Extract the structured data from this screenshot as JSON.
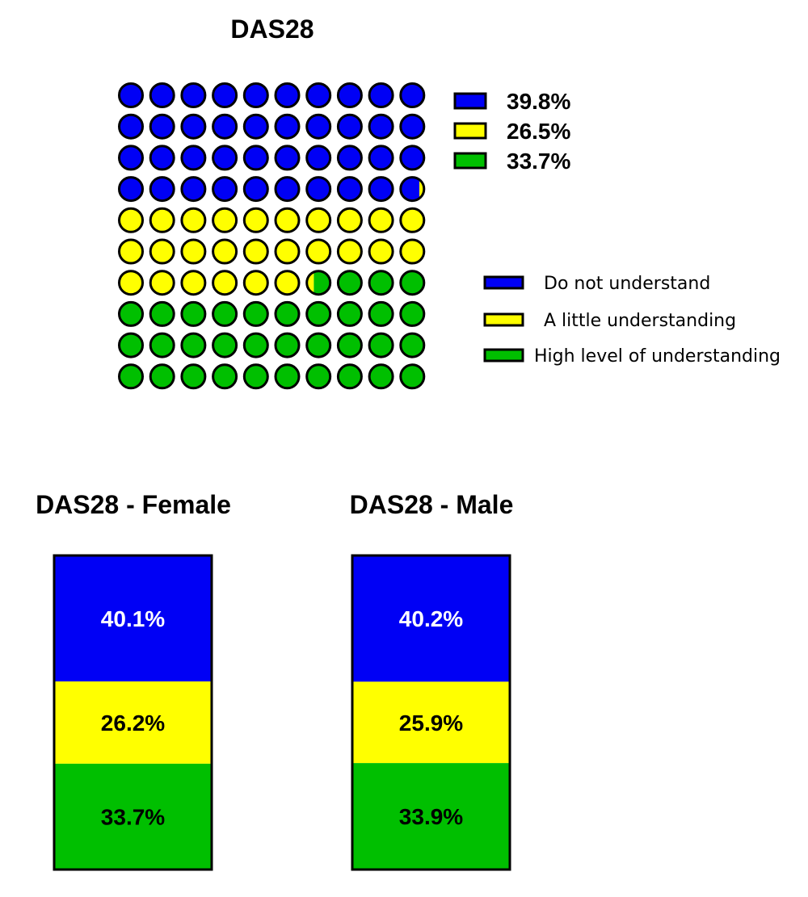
{
  "colors": {
    "do_not_understand": "#0000f5",
    "a_little_understanding": "#ffff00",
    "high_understanding": "#00bf00",
    "outline": "#000000"
  },
  "chart_data": [
    {
      "type": "waffle",
      "title": "DAS28",
      "grid": [
        10,
        10
      ],
      "categories": [
        "Do not understand",
        "A little understanding",
        "High level of understanding"
      ],
      "values": [
        39.8,
        26.5,
        33.7
      ],
      "value_labels": [
        "39.8%",
        "26.5%",
        "33.7%"
      ]
    },
    {
      "type": "bar",
      "stacked": true,
      "title": "DAS28 - Female",
      "categories": [
        "Do not understand",
        "A little understanding",
        "High level of understanding"
      ],
      "values": [
        40.1,
        26.2,
        33.7
      ],
      "value_labels": [
        "40.1%",
        "26.2%",
        "33.7%"
      ]
    },
    {
      "type": "bar",
      "stacked": true,
      "title": "DAS28 - Male",
      "categories": [
        "Do not understand",
        "A little understanding",
        "High level of understanding"
      ],
      "values": [
        40.2,
        25.9,
        33.9
      ],
      "value_labels": [
        "40.2%",
        "25.9%",
        "33.9%"
      ]
    }
  ]
}
